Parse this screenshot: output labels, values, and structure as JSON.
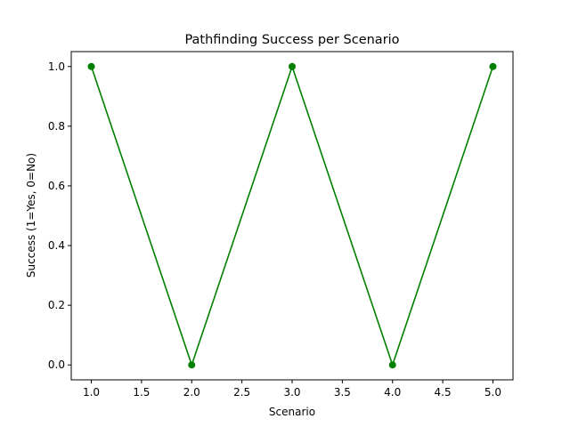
{
  "chart_data": {
    "type": "line",
    "title": "Pathfinding Success per Scenario",
    "xlabel": "Scenario",
    "ylabel": "Success (1=Yes, 0=No)",
    "series": [
      {
        "x": [
          1,
          2,
          3,
          4,
          5
        ],
        "values": [
          1,
          0,
          1,
          0,
          1
        ],
        "color": "#008000",
        "marker": "circle"
      }
    ],
    "x_ticks": [
      "1.0",
      "1.5",
      "2.0",
      "2.5",
      "3.0",
      "3.5",
      "4.0",
      "4.5",
      "5.0"
    ],
    "y_ticks": [
      "0.0",
      "0.2",
      "0.4",
      "0.6",
      "0.8",
      "1.0"
    ],
    "xlim": [
      0.8,
      5.2
    ],
    "ylim": [
      -0.05,
      1.05
    ],
    "grid": false,
    "legend": "none"
  }
}
